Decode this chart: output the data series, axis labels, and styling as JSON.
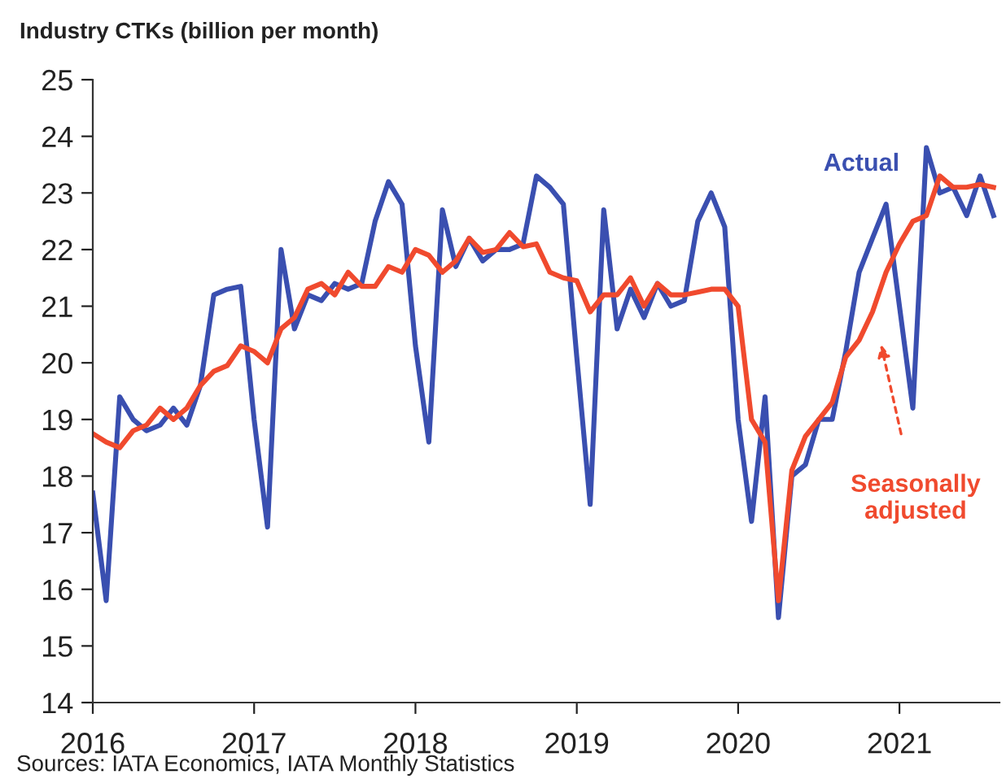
{
  "chart_data": {
    "type": "line",
    "title": "Industry CTKs (billion per month)",
    "x": [
      2016.0,
      2016.083,
      2016.167,
      2016.25,
      2016.333,
      2016.417,
      2016.5,
      2016.583,
      2016.667,
      2016.75,
      2016.833,
      2016.917,
      2017.0,
      2017.083,
      2017.167,
      2017.25,
      2017.333,
      2017.417,
      2017.5,
      2017.583,
      2017.667,
      2017.75,
      2017.833,
      2017.917,
      2018.0,
      2018.083,
      2018.167,
      2018.25,
      2018.333,
      2018.417,
      2018.5,
      2018.583,
      2018.667,
      2018.75,
      2018.833,
      2018.917,
      2019.0,
      2019.083,
      2019.167,
      2019.25,
      2019.333,
      2019.417,
      2019.5,
      2019.583,
      2019.667,
      2019.75,
      2019.833,
      2019.917,
      2020.0,
      2020.083,
      2020.167,
      2020.25,
      2020.333,
      2020.417,
      2020.5,
      2020.583,
      2020.667,
      2020.75,
      2020.833,
      2020.917,
      2021.0,
      2021.083,
      2021.167,
      2021.25,
      2021.333,
      2021.417,
      2021.5,
      2021.583
    ],
    "series": [
      {
        "name": "Actual",
        "color": "#3a4fb0",
        "values": [
          17.7,
          15.8,
          19.4,
          19.0,
          18.8,
          18.9,
          19.2,
          18.9,
          19.6,
          21.2,
          21.3,
          21.35,
          19.0,
          17.1,
          22.0,
          20.6,
          21.2,
          21.1,
          21.4,
          21.3,
          21.4,
          22.5,
          23.2,
          22.8,
          20.3,
          18.6,
          22.7,
          21.7,
          22.2,
          21.8,
          22.0,
          22.0,
          22.1,
          23.3,
          23.1,
          22.8,
          20.1,
          17.5,
          22.7,
          20.6,
          21.3,
          20.8,
          21.4,
          21.0,
          21.1,
          22.5,
          23.0,
          22.4,
          19.0,
          17.2,
          19.4,
          15.5,
          18.0,
          18.2,
          19.0,
          19.0,
          20.2,
          21.6,
          22.2,
          22.8,
          21.0,
          19.2,
          23.8,
          23.0,
          23.1,
          22.6,
          23.3,
          22.6
        ]
      },
      {
        "name": "Seasonally adjusted",
        "color": "#f04a2e",
        "values": [
          18.75,
          18.6,
          18.5,
          18.8,
          18.9,
          19.2,
          19.0,
          19.2,
          19.6,
          19.85,
          19.95,
          20.3,
          20.2,
          20.0,
          20.6,
          20.8,
          21.3,
          21.4,
          21.2,
          21.6,
          21.35,
          21.35,
          21.7,
          21.6,
          22.0,
          21.9,
          21.6,
          21.8,
          22.2,
          21.95,
          22.0,
          22.3,
          22.05,
          22.1,
          21.6,
          21.5,
          21.45,
          20.9,
          21.2,
          21.2,
          21.5,
          21.0,
          21.4,
          21.2,
          21.2,
          21.25,
          21.3,
          21.3,
          21.0,
          19.0,
          18.6,
          15.8,
          18.1,
          18.7,
          19.0,
          19.3,
          20.1,
          20.4,
          20.9,
          21.6,
          22.1,
          22.5,
          22.6,
          23.3,
          23.1,
          23.1,
          23.15,
          23.1
        ]
      }
    ],
    "xlim": [
      2016.0,
      2021.62
    ],
    "xticks": [
      2016,
      2017,
      2018,
      2019,
      2020,
      2021
    ],
    "ylim": [
      14,
      25
    ],
    "yticks": [
      14,
      15,
      16,
      17,
      18,
      19,
      20,
      21,
      22,
      23,
      24,
      25
    ],
    "grid": false,
    "legend": false,
    "marker": "none",
    "line_style": "solid",
    "annotations": [
      "Sources: IATA Economics, IATA Monthly Statistics"
    ]
  }
}
